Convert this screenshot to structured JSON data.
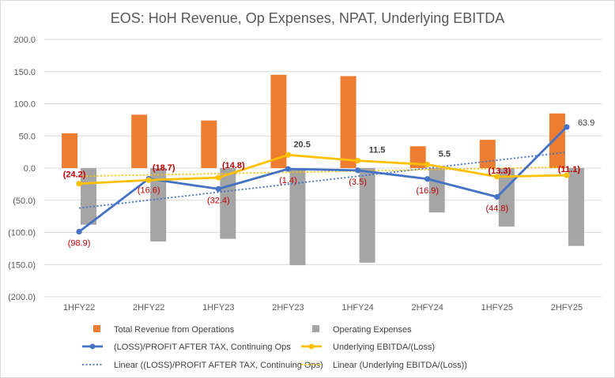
{
  "chart_data": {
    "type": "bar",
    "title": "EOS: HoH Revenue, Op Expenses, NPAT, Underlying EBITDA",
    "categories": [
      "1HFY22",
      "2HFY22",
      "1HFY23",
      "2HFY23",
      "1HFY24",
      "2HFY24",
      "1HFY25",
      "2HFY25"
    ],
    "ylim": [
      -200,
      200
    ],
    "yticks": [
      "200.0",
      "150.0",
      "100.0",
      "50.0",
      "0.0",
      "(50.0)",
      "(100.0)",
      "(150.0)",
      "(200.0)"
    ],
    "ytick_values": [
      200,
      150,
      100,
      50,
      0,
      -50,
      -100,
      -150,
      -200
    ],
    "grid": true,
    "legend_position": "bottom",
    "colors": {
      "revenue": "#ed7d31",
      "expenses": "#a5a5a5",
      "npat": "#4472c4",
      "ebitda": "#ffc000",
      "npat_label": "#c00000",
      "ebitda_label": "#c00000",
      "grid": "#d9d9d9"
    },
    "series": [
      {
        "key": "revenue",
        "name": "Total Revenue from Operations",
        "kind": "bar",
        "values": [
          54,
          83,
          74,
          145,
          143,
          34,
          44,
          85
        ]
      },
      {
        "key": "expenses",
        "name": "Operating Expenses",
        "kind": "bar",
        "values": [
          -88,
          -114,
          -110,
          -151,
          -147,
          -69,
          -91,
          -121
        ]
      },
      {
        "key": "npat",
        "name": "(LOSS)/PROFIT AFTER TAX, Continuing Ops",
        "kind": "line",
        "values": [
          -98.9,
          -16.6,
          -32.4,
          -1.4,
          -3.5,
          -16.9,
          -44.8,
          63.9
        ],
        "labels": [
          "(98.9)",
          "(16.6)",
          "(32.4)",
          "(1.4)",
          "(3.5)",
          "(16.9)",
          "(44.8)",
          "63.9"
        ]
      },
      {
        "key": "ebitda",
        "name": "Underlying EBITDA/(Loss)",
        "kind": "line",
        "values": [
          -24.2,
          -18.7,
          -14.8,
          20.5,
          11.5,
          5.5,
          -13.3,
          -11.1
        ],
        "labels": [
          "(24.2)",
          "(18.7)",
          "(14.8)",
          "20.5",
          "11.5",
          "5.5",
          "(13.3)",
          "(11.1)"
        ]
      },
      {
        "key": "npat_trend",
        "name": "Linear ((LOSS)/PROFIT AFTER TAX, Continuing Ops)",
        "kind": "trend",
        "of": "npat"
      },
      {
        "key": "ebitda_trend",
        "name": "Linear (Underlying EBITDA/(Loss))",
        "kind": "trend",
        "of": "ebitda"
      }
    ]
  }
}
